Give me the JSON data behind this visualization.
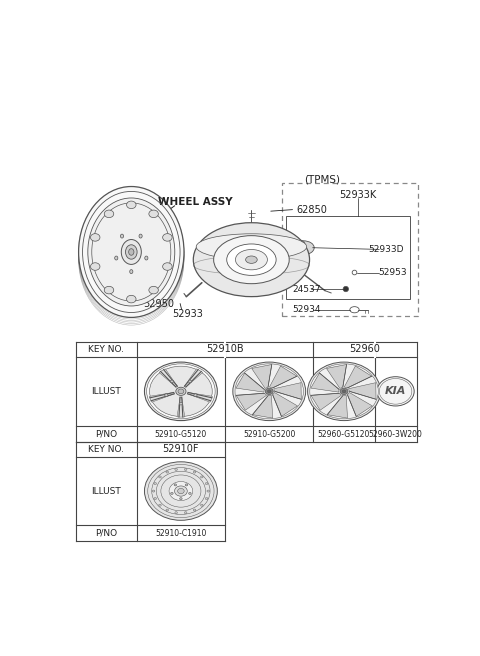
{
  "bg_color": "#ffffff",
  "colors": {
    "table_border": "#444444",
    "text": "#222222",
    "wheel_line": "#555555",
    "tpms_box": "#888888"
  },
  "diagram": {
    "wheel_assy_label": "WHEEL ASSY",
    "parts": [
      "62850",
      "52950",
      "52933"
    ],
    "tpms_label": "(TPMS)",
    "tpms_items": [
      "52933K",
      "52933D",
      "52953",
      "24537",
      "52934"
    ]
  },
  "table": {
    "row1_key": "KEY NO.",
    "row1_col2": "52910B",
    "row1_col3": "52960",
    "row2_key": "ILLUST",
    "row3_key": "P/NO",
    "pno_row1": [
      "52910-G5120",
      "52910-G5200",
      "52960-G5120",
      "52960-3W200"
    ],
    "row4_key": "KEY NO.",
    "row4_col2": "52910F",
    "row5_key": "ILLUST",
    "row6_key": "P/NO",
    "pno_row2": "52910-C1910"
  }
}
